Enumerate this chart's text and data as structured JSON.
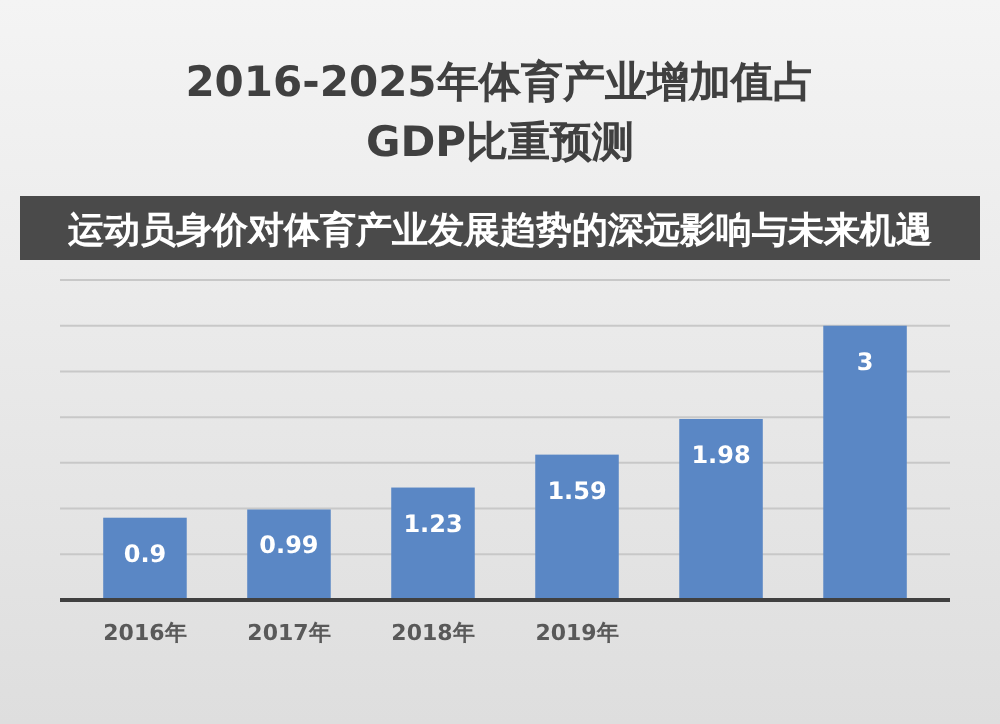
{
  "chart_data": {
    "type": "bar",
    "title": "2016-2025年体育产业增加值占GDP比重预测",
    "subtitle": "运动员身价对体育产业发展趋势的深远影响与未来机遇",
    "categories": [
      "2016年",
      "2017年",
      "2018年",
      "2019年",
      null,
      null
    ],
    "values": [
      0.9,
      0.99,
      1.23,
      1.59,
      1.98,
      3
    ],
    "color": "#5a87c5",
    "data_labels": true,
    "ylim": [
      0,
      3.5
    ],
    "yticks": [
      {
        "value": 0,
        "label": null
      },
      {
        "value": 0.5,
        "label": null
      },
      {
        "value": 1,
        "label": null
      },
      {
        "value": 1.5,
        "label": null
      },
      {
        "value": 2,
        "label": null
      },
      {
        "value": 2.5,
        "label": null
      },
      {
        "value": 3,
        "label": null
      },
      {
        "value": 3.5,
        "label": null
      }
    ],
    "grid": "y",
    "tick_labels": "x"
  }
}
